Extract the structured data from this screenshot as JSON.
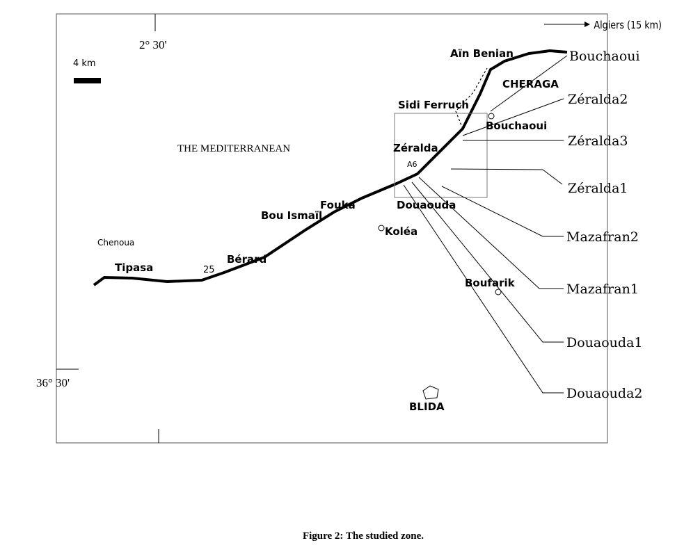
{
  "map": {
    "graticule": {
      "longitude": "2° 30'",
      "latitude": "36° 30'"
    },
    "scale": "4 km",
    "direction": "Algiers (15 km)",
    "sea": "THE MEDITERRANEAN",
    "places": [
      "Aïn Benian",
      "CHERAGA",
      "Sidi Ferruch",
      "Bouchaoui",
      "Zéralda",
      "Douaouda",
      "Fouka",
      "Bou Ismaïl",
      "Koléa",
      "Boufarik",
      "Chenoua",
      "Tipasa",
      "Bérard",
      "BLIDA"
    ],
    "roads": [
      "A6",
      "25"
    ],
    "stations": [
      "Bouchaoui",
      "Zéralda2",
      "Zéralda3",
      "Zéralda1",
      "Mazafran2",
      "Mazafran1",
      "Douaouda1",
      "Douaouda2"
    ]
  },
  "caption": "Figure 2: The studied zone."
}
